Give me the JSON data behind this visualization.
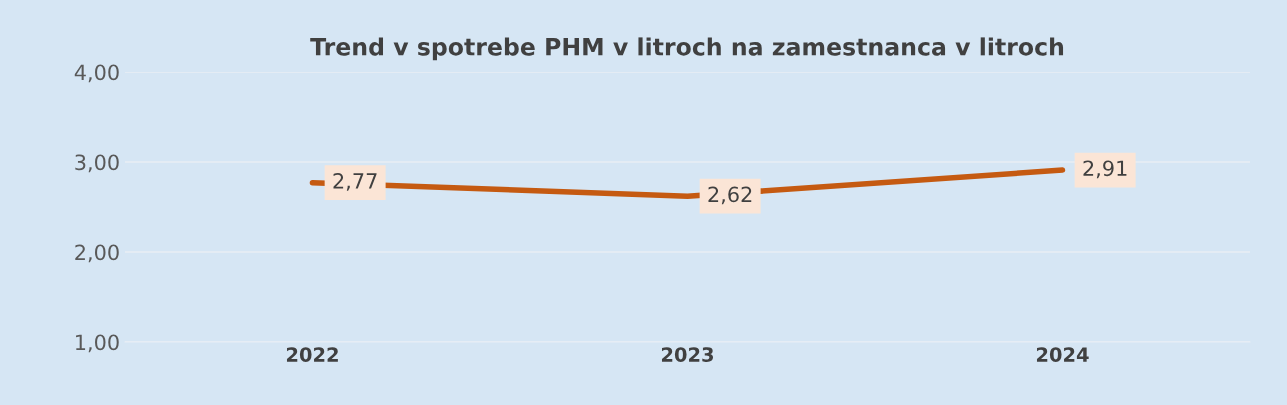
{
  "chart_data": {
    "type": "line",
    "title": "Trend v spotrebe PHM v litroch na zamestnanca v litroch",
    "categories": [
      "2022",
      "2023",
      "2024"
    ],
    "series": [
      {
        "color": "#c55a11",
        "values": [
          2.77,
          2.62,
          2.91
        ],
        "value_labels": [
          "2,77",
          "2,62",
          "2,91"
        ]
      }
    ],
    "ylim": [
      1,
      4
    ],
    "yticks": [
      {
        "value": 1,
        "label": "1,00"
      },
      {
        "value": 2,
        "label": "2,00"
      },
      {
        "value": 3,
        "label": "3,00"
      },
      {
        "value": 4,
        "label": "4,00"
      }
    ],
    "grid": "y",
    "marker": "none",
    "line_style": "solid",
    "legend": false
  }
}
